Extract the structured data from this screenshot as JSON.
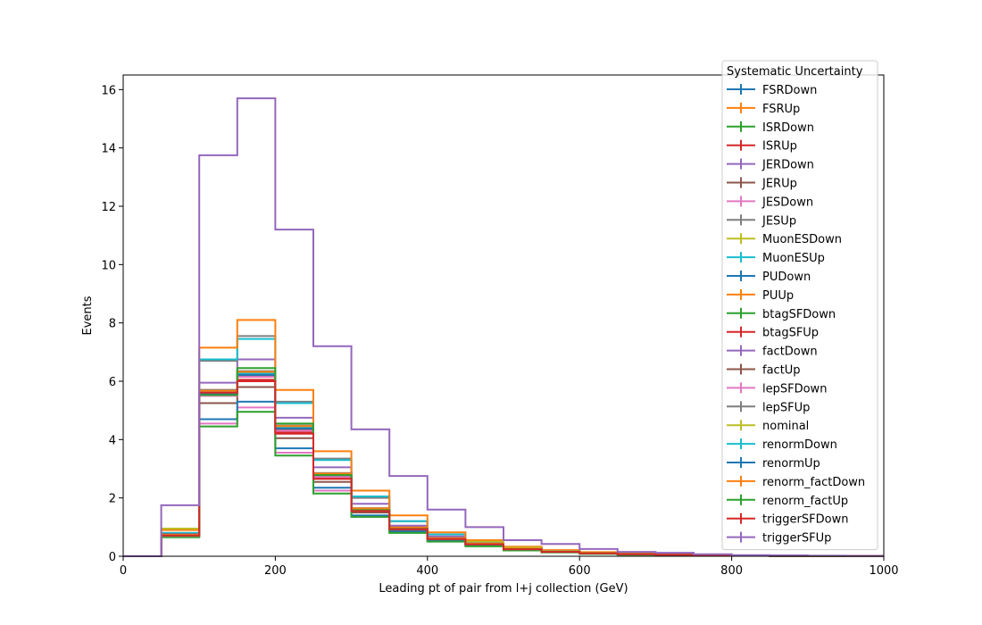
{
  "chart_data": {
    "type": "histogram-step",
    "xlabel": "Leading pt of pair from l+j collection (GeV)",
    "ylabel": "Events",
    "xlim": [
      0,
      1000
    ],
    "ylim": [
      0,
      16.5
    ],
    "x_ticks": [
      0,
      200,
      400,
      600,
      800,
      1000
    ],
    "y_ticks": [
      0,
      2,
      4,
      6,
      8,
      10,
      12,
      14,
      16
    ],
    "grid": false,
    "legend_title": "Systematic Uncertainty",
    "legend_position": "top-right",
    "bin_edges": [
      0,
      50,
      100,
      150,
      200,
      250,
      300,
      350,
      400,
      450,
      500,
      550,
      600,
      650,
      700,
      750,
      800,
      850,
      900,
      950,
      1000
    ],
    "series": [
      {
        "name": "FSRDown",
        "color": "#1f77b4",
        "values": [
          0,
          0.7,
          5.6,
          6.25,
          4.4,
          2.8,
          1.6,
          0.95,
          0.6,
          0.42,
          0.25,
          0.16,
          0.1,
          0.07,
          0.05,
          0.03,
          0.02,
          0.01,
          0.01,
          0.01
        ]
      },
      {
        "name": "FSRUp",
        "color": "#ff7f0e",
        "values": [
          0,
          0.75,
          5.7,
          6.3,
          4.45,
          2.85,
          1.65,
          1.0,
          0.62,
          0.43,
          0.26,
          0.17,
          0.11,
          0.07,
          0.05,
          0.03,
          0.02,
          0.01,
          0.01,
          0.01
        ]
      },
      {
        "name": "ISRDown",
        "color": "#2ca02c",
        "values": [
          0,
          0.7,
          5.55,
          6.2,
          4.35,
          2.75,
          1.6,
          0.95,
          0.6,
          0.41,
          0.25,
          0.16,
          0.1,
          0.07,
          0.05,
          0.03,
          0.02,
          0.01,
          0.01,
          0.01
        ]
      },
      {
        "name": "ISRUp",
        "color": "#d62728",
        "values": [
          0,
          0.72,
          5.6,
          6.3,
          4.4,
          2.8,
          1.62,
          0.97,
          0.61,
          0.42,
          0.25,
          0.16,
          0.1,
          0.07,
          0.05,
          0.03,
          0.02,
          0.01,
          0.01,
          0.01
        ]
      },
      {
        "name": "JERDown",
        "color": "#9467bd",
        "values": [
          0,
          0.75,
          5.95,
          6.75,
          4.75,
          3.05,
          1.8,
          1.05,
          0.68,
          0.46,
          0.28,
          0.18,
          0.12,
          0.08,
          0.05,
          0.03,
          0.02,
          0.01,
          0.01,
          0.01
        ]
      },
      {
        "name": "JERUp",
        "color": "#8c564b",
        "values": [
          0,
          0.72,
          5.25,
          5.8,
          4.05,
          2.55,
          1.5,
          0.9,
          0.57,
          0.39,
          0.23,
          0.15,
          0.09,
          0.06,
          0.04,
          0.03,
          0.02,
          0.01,
          0.01,
          0.01
        ]
      },
      {
        "name": "JESDown",
        "color": "#e377c2",
        "values": [
          0,
          0.7,
          4.55,
          5.1,
          3.55,
          2.25,
          1.35,
          0.82,
          0.52,
          0.36,
          0.22,
          0.14,
          0.09,
          0.06,
          0.04,
          0.03,
          0.02,
          0.01,
          0.01,
          0.01
        ]
      },
      {
        "name": "JESUp",
        "color": "#7f7f7f",
        "values": [
          0,
          0.8,
          6.7,
          7.55,
          5.3,
          3.35,
          2.0,
          1.2,
          0.75,
          0.52,
          0.31,
          0.2,
          0.13,
          0.09,
          0.06,
          0.04,
          0.02,
          0.01,
          0.01,
          0.01
        ]
      },
      {
        "name": "MuonESDown",
        "color": "#bcbd22",
        "values": [
          0,
          0.72,
          5.6,
          6.25,
          4.4,
          2.8,
          1.6,
          0.95,
          0.6,
          0.42,
          0.25,
          0.16,
          0.1,
          0.07,
          0.05,
          0.03,
          0.02,
          0.01,
          0.01,
          0.01
        ]
      },
      {
        "name": "MuonESUp",
        "color": "#17becf",
        "values": [
          0,
          0.8,
          6.75,
          7.45,
          5.25,
          3.3,
          2.05,
          1.2,
          0.75,
          0.52,
          0.31,
          0.2,
          0.13,
          0.09,
          0.06,
          0.04,
          0.02,
          0.01,
          0.01,
          0.01
        ]
      },
      {
        "name": "PUDown",
        "color": "#1f77b4",
        "values": [
          0,
          0.7,
          4.7,
          5.3,
          3.7,
          2.35,
          1.4,
          0.85,
          0.54,
          0.37,
          0.22,
          0.14,
          0.09,
          0.06,
          0.04,
          0.03,
          0.02,
          0.01,
          0.01,
          0.01
        ]
      },
      {
        "name": "PUUp",
        "color": "#ff7f0e",
        "values": [
          0,
          0.9,
          7.15,
          8.1,
          5.7,
          3.6,
          2.25,
          1.4,
          0.82,
          0.55,
          0.33,
          0.21,
          0.14,
          0.09,
          0.06,
          0.04,
          0.02,
          0.01,
          0.01,
          0.01
        ]
      },
      {
        "name": "btagSFDown",
        "color": "#2ca02c",
        "values": [
          0,
          0.65,
          4.45,
          4.95,
          3.45,
          2.15,
          1.35,
          0.8,
          0.5,
          0.34,
          0.2,
          0.13,
          0.08,
          0.05,
          0.04,
          0.03,
          0.02,
          0.01,
          0.01,
          0.01
        ]
      },
      {
        "name": "btagSFUp",
        "color": "#d62728",
        "values": [
          0,
          0.75,
          5.65,
          6.05,
          4.25,
          2.7,
          1.6,
          0.95,
          0.6,
          0.41,
          0.25,
          0.16,
          0.1,
          0.07,
          0.05,
          0.03,
          0.02,
          0.01,
          0.01,
          0.01
        ]
      },
      {
        "name": "factDown",
        "color": "#9467bd",
        "values": [
          0,
          0.72,
          5.65,
          6.3,
          4.45,
          2.8,
          1.62,
          0.97,
          0.61,
          0.42,
          0.25,
          0.16,
          0.1,
          0.07,
          0.05,
          0.03,
          0.02,
          0.01,
          0.01,
          0.01
        ]
      },
      {
        "name": "factUp",
        "color": "#8c564b",
        "values": [
          0,
          0.7,
          5.55,
          6.2,
          4.35,
          2.75,
          1.6,
          0.95,
          0.6,
          0.41,
          0.25,
          0.16,
          0.1,
          0.07,
          0.05,
          0.03,
          0.02,
          0.01,
          0.01,
          0.01
        ]
      },
      {
        "name": "lepSFDown",
        "color": "#e377c2",
        "values": [
          0,
          0.68,
          5.5,
          6.15,
          4.3,
          2.72,
          1.58,
          0.94,
          0.59,
          0.41,
          0.24,
          0.15,
          0.1,
          0.07,
          0.05,
          0.03,
          0.02,
          0.01,
          0.01,
          0.01
        ]
      },
      {
        "name": "lepSFUp",
        "color": "#7f7f7f",
        "values": [
          0,
          0.74,
          5.7,
          6.35,
          4.48,
          2.85,
          1.64,
          0.98,
          0.62,
          0.43,
          0.26,
          0.16,
          0.1,
          0.07,
          0.05,
          0.03,
          0.02,
          0.01,
          0.01,
          0.01
        ]
      },
      {
        "name": "nominal",
        "color": "#bcbd22",
        "values": [
          0,
          0.95,
          5.6,
          6.25,
          4.4,
          2.8,
          1.62,
          0.97,
          0.61,
          0.5,
          0.3,
          0.18,
          0.11,
          0.07,
          0.05,
          0.03,
          0.02,
          0.01,
          0.01,
          0.01
        ]
      },
      {
        "name": "renormDown",
        "color": "#17becf",
        "values": [
          0,
          0.72,
          5.62,
          6.27,
          4.42,
          2.8,
          1.61,
          0.96,
          0.61,
          0.42,
          0.25,
          0.16,
          0.1,
          0.07,
          0.05,
          0.03,
          0.02,
          0.01,
          0.01,
          0.01
        ]
      },
      {
        "name": "renormUp",
        "color": "#1f77b4",
        "values": [
          0,
          0.7,
          5.58,
          6.22,
          4.38,
          2.78,
          1.59,
          0.95,
          0.6,
          0.41,
          0.25,
          0.16,
          0.1,
          0.07,
          0.05,
          0.03,
          0.02,
          0.01,
          0.01,
          0.01
        ]
      },
      {
        "name": "renorm_factDown",
        "color": "#ff7f0e",
        "values": [
          0,
          0.73,
          5.67,
          6.32,
          4.46,
          2.83,
          1.63,
          0.98,
          0.62,
          0.43,
          0.26,
          0.16,
          0.1,
          0.07,
          0.05,
          0.03,
          0.02,
          0.01,
          0.01,
          0.01
        ]
      },
      {
        "name": "renorm_factUp",
        "color": "#2ca02c",
        "values": [
          0,
          0.69,
          5.53,
          6.45,
          4.55,
          2.78,
          1.58,
          0.94,
          0.59,
          0.41,
          0.24,
          0.15,
          0.1,
          0.07,
          0.05,
          0.03,
          0.02,
          0.01,
          0.01,
          0.01
        ]
      },
      {
        "name": "triggerSFDown",
        "color": "#d62728",
        "values": [
          0,
          0.71,
          5.61,
          6.0,
          4.2,
          2.65,
          1.55,
          0.93,
          0.59,
          0.41,
          0.24,
          0.15,
          0.1,
          0.07,
          0.05,
          0.03,
          0.02,
          0.01,
          0.01,
          0.01
        ]
      },
      {
        "name": "triggerSFUp",
        "color": "#9467bd",
        "values": [
          0,
          1.75,
          13.75,
          15.7,
          11.2,
          7.2,
          4.35,
          2.75,
          1.6,
          1.0,
          0.55,
          0.42,
          0.25,
          0.15,
          0.12,
          0.07,
          0.04,
          0.03,
          0.02,
          0.01
        ]
      }
    ]
  }
}
